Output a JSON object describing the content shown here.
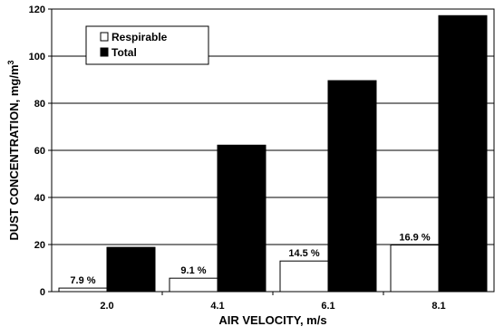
{
  "chart_data": {
    "type": "bar",
    "categories": [
      "2.0",
      "4.1",
      "6.1",
      "8.1"
    ],
    "series": [
      {
        "name": "Respirable",
        "values": [
          1.5,
          5.7,
          13.0,
          19.8
        ],
        "labels": [
          "7.9 %",
          "9.1 %",
          "14.5 %",
          "16.9 %"
        ],
        "color": "#ffffff"
      },
      {
        "name": "Total",
        "values": [
          18.8,
          62.2,
          89.6,
          117.2
        ],
        "color": "#000000"
      }
    ],
    "xlabel": "AIR VELOCITY, m/s",
    "ylabel": "DUST CONCENTRATION, mg/m",
    "ylabel_superscript": "3",
    "ylim": [
      0,
      120
    ],
    "yticks": [
      "0",
      "20",
      "40",
      "60",
      "80",
      "100",
      "120"
    ],
    "grid": true,
    "legend_position": "top-left"
  }
}
